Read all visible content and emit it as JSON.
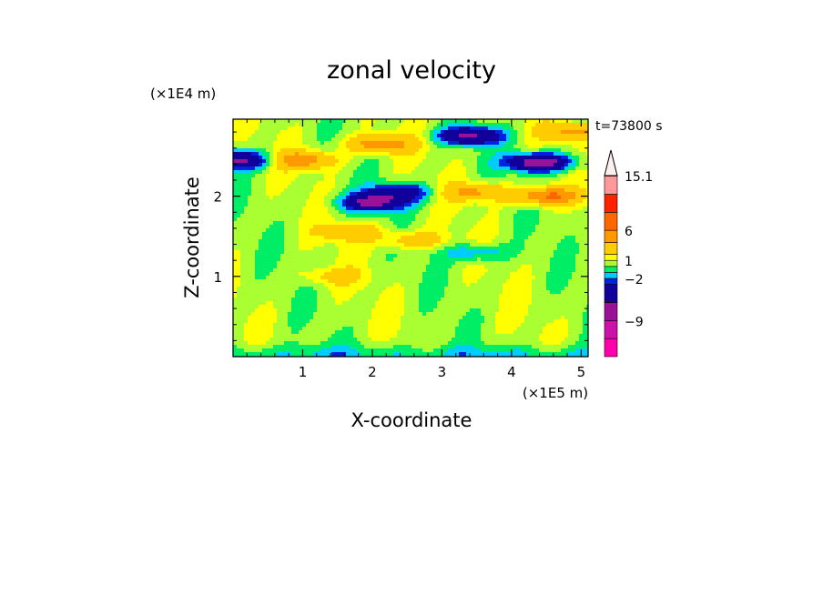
{
  "chart_data": {
    "type": "heatmap",
    "title": "zonal velocity",
    "xlabel": "X-coordinate",
    "ylabel": "Z-coordinate",
    "x_unit": "(×1E5 m)",
    "y_unit": "(×1E4 m)",
    "time_label": "t=73800 s",
    "xlim": [
      0,
      5.1
    ],
    "ylim": [
      0,
      2.96
    ],
    "x_ticks": [
      "1",
      "2",
      "3",
      "4",
      "5"
    ],
    "y_ticks": [
      "1",
      "2"
    ],
    "colorbar": {
      "labels": [
        "15.1",
        "6",
        "1",
        "−2",
        "−9"
      ],
      "label_values": [
        15.1,
        6,
        1,
        -2,
        -9
      ],
      "levels": [
        -15,
        -12,
        -9,
        -6,
        -3,
        -2,
        -1,
        0,
        1,
        2,
        4,
        6,
        9,
        12,
        15.1
      ],
      "colors": [
        "#ff00aa",
        "#cc11aa",
        "#991199",
        "#110099",
        "#0022dd",
        "#00ccff",
        "#00ee66",
        "#aaff33",
        "#ffff00",
        "#ffcc00",
        "#ff9900",
        "#ff6600",
        "#ff2200",
        "#ff9999",
        "#ffcccc"
      ],
      "extend": "max"
    },
    "field_features": [
      {
        "x": 2.0,
        "z": 1.92,
        "value": -7
      },
      {
        "x": 4.4,
        "z": 2.42,
        "value": -9
      },
      {
        "x": 0.1,
        "z": 2.45,
        "value": -7
      },
      {
        "x": 3.4,
        "z": 2.75,
        "value": -7
      },
      {
        "x": 2.4,
        "z": 2.05,
        "value": -5
      },
      {
        "x": 3.5,
        "z": 1.3,
        "value": -3
      },
      {
        "x": 4.5,
        "z": 2.0,
        "value": 6
      },
      {
        "x": 1.0,
        "z": 2.45,
        "value": 5
      },
      {
        "x": 2.1,
        "z": 2.65,
        "value": 5
      },
      {
        "x": 3.5,
        "z": 2.05,
        "value": 4
      },
      {
        "x": 4.9,
        "z": 2.8,
        "value": 4
      },
      {
        "x": 1.7,
        "z": 1.55,
        "value": 3
      },
      {
        "x": 2.6,
        "z": 1.45,
        "value": 3
      },
      {
        "x": 1.4,
        "z": 1.0,
        "value": 2
      }
    ]
  }
}
